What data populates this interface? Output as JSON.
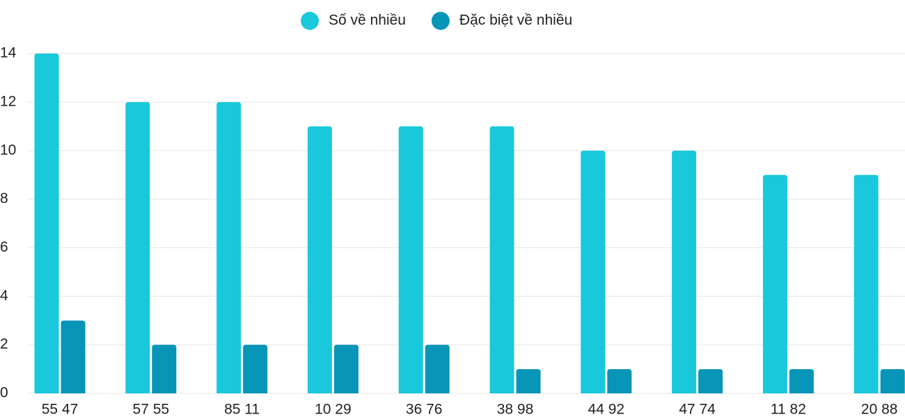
{
  "chart_data": {
    "type": "bar",
    "categories": [
      "55 47",
      "57 55",
      "85 11",
      "10 29",
      "36 76",
      "38 98",
      "44 92",
      "47 74",
      "11 82",
      "20 88"
    ],
    "series": [
      {
        "name": "Số về nhiều",
        "color": "#1ac8db",
        "values": [
          14,
          12,
          12,
          11,
          11,
          11,
          10,
          10,
          9,
          9
        ]
      },
      {
        "name": "Đặc biệt về nhiều",
        "color": "#0795b8",
        "values": [
          3,
          2,
          2,
          2,
          2,
          1,
          1,
          1,
          1,
          1
        ]
      }
    ],
    "ylim": [
      0,
      14
    ],
    "yticks": [
      0,
      2,
      4,
      6,
      8,
      10,
      12,
      14
    ],
    "grid": true,
    "legend": "top"
  }
}
